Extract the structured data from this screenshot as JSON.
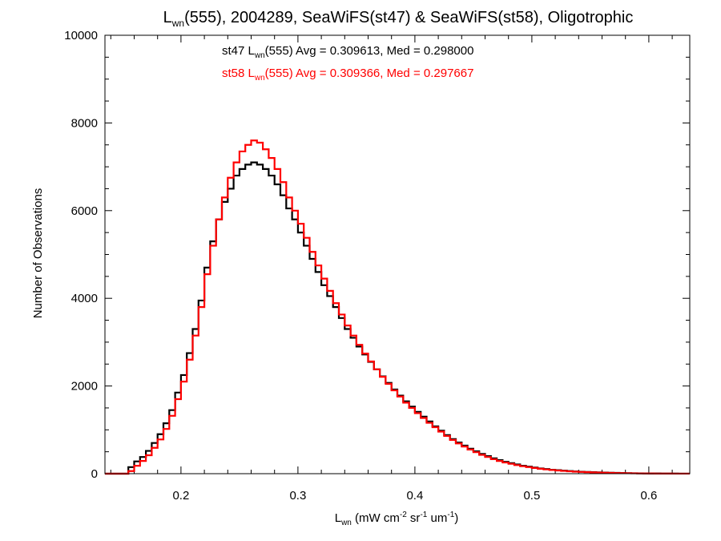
{
  "chart_data": {
    "type": "line",
    "title": {
      "prefix": "L",
      "sub": "wn",
      "rest": "(555), 2004289, SeaWiFS(st47) & SeaWiFS(st58), Oligotrophic"
    },
    "xlabel": {
      "prefix": "L",
      "sub": "wn",
      "p1": " (mW cm",
      "sup1": "-2",
      "p2": " sr",
      "sup2": "-1",
      "p3": " um",
      "sup3": "-1",
      "p4": ")"
    },
    "ylabel": "Number of Observations",
    "xlim": [
      0.135,
      0.635
    ],
    "ylim": [
      0,
      10000
    ],
    "x_ticks": [
      0.2,
      0.3,
      0.4,
      0.5,
      0.6
    ],
    "x_tick_labels": [
      "0.2",
      "0.3",
      "0.4",
      "0.5",
      "0.6"
    ],
    "y_ticks": [
      0,
      2000,
      4000,
      6000,
      8000,
      10000
    ],
    "y_tick_labels": [
      "0",
      "2000",
      "4000",
      "6000",
      "8000",
      "10000"
    ],
    "annotations": [
      {
        "series": "st47",
        "color": "#000000",
        "prefix": "st47 L",
        "sub": "wn",
        "rest": "(555) Avg = 0.309613, Med = 0.298000"
      },
      {
        "series": "st58",
        "color": "#ff0000",
        "prefix": "st58 L",
        "sub": "wn",
        "rest": "(555) Avg = 0.309366, Med = 0.297667"
      }
    ],
    "series": [
      {
        "name": "st47",
        "color": "#000000",
        "x": [
          0.135,
          0.14,
          0.145,
          0.15,
          0.155,
          0.16,
          0.165,
          0.17,
          0.175,
          0.18,
          0.185,
          0.19,
          0.195,
          0.2,
          0.205,
          0.21,
          0.215,
          0.22,
          0.225,
          0.23,
          0.235,
          0.24,
          0.245,
          0.25,
          0.255,
          0.26,
          0.265,
          0.27,
          0.275,
          0.28,
          0.285,
          0.29,
          0.295,
          0.3,
          0.305,
          0.31,
          0.315,
          0.32,
          0.325,
          0.33,
          0.335,
          0.34,
          0.345,
          0.35,
          0.355,
          0.36,
          0.365,
          0.37,
          0.375,
          0.38,
          0.385,
          0.39,
          0.395,
          0.4,
          0.405,
          0.41,
          0.415,
          0.42,
          0.425,
          0.43,
          0.435,
          0.44,
          0.445,
          0.45,
          0.455,
          0.46,
          0.465,
          0.47,
          0.475,
          0.48,
          0.485,
          0.49,
          0.495,
          0.5,
          0.505,
          0.51,
          0.515,
          0.52,
          0.525,
          0.53,
          0.535,
          0.54,
          0.545,
          0.55,
          0.555,
          0.56,
          0.565,
          0.57,
          0.575,
          0.58,
          0.585,
          0.59,
          0.595,
          0.6,
          0.605,
          0.61,
          0.615,
          0.62,
          0.625,
          0.63
        ],
        "y": [
          0,
          0,
          0,
          0,
          150,
          280,
          380,
          520,
          700,
          900,
          1150,
          1450,
          1850,
          2250,
          2750,
          3300,
          3950,
          4700,
          5300,
          5800,
          6200,
          6500,
          6800,
          6950,
          7050,
          7100,
          7050,
          6950,
          6800,
          6600,
          6350,
          6050,
          5800,
          5500,
          5200,
          4900,
          4600,
          4300,
          4050,
          3800,
          3550,
          3300,
          3100,
          2900,
          2720,
          2550,
          2380,
          2220,
          2070,
          1920,
          1780,
          1650,
          1530,
          1410,
          1300,
          1190,
          1080,
          980,
          880,
          790,
          710,
          640,
          570,
          510,
          450,
          400,
          350,
          310,
          270,
          240,
          210,
          180,
          160,
          140,
          120,
          105,
          90,
          80,
          70,
          60,
          50,
          45,
          40,
          35,
          30,
          25,
          20,
          18,
          15,
          12,
          10,
          8,
          6,
          5,
          4,
          3,
          2,
          2,
          1,
          1
        ]
      },
      {
        "name": "st58",
        "color": "#ff0000",
        "x": [
          0.135,
          0.14,
          0.145,
          0.15,
          0.155,
          0.16,
          0.165,
          0.17,
          0.175,
          0.18,
          0.185,
          0.19,
          0.195,
          0.2,
          0.205,
          0.21,
          0.215,
          0.22,
          0.225,
          0.23,
          0.235,
          0.24,
          0.245,
          0.25,
          0.255,
          0.26,
          0.265,
          0.27,
          0.275,
          0.28,
          0.285,
          0.29,
          0.295,
          0.3,
          0.305,
          0.31,
          0.315,
          0.32,
          0.325,
          0.33,
          0.335,
          0.34,
          0.345,
          0.35,
          0.355,
          0.36,
          0.365,
          0.37,
          0.375,
          0.38,
          0.385,
          0.39,
          0.395,
          0.4,
          0.405,
          0.41,
          0.415,
          0.42,
          0.425,
          0.43,
          0.435,
          0.44,
          0.445,
          0.45,
          0.455,
          0.46,
          0.465,
          0.47,
          0.475,
          0.48,
          0.485,
          0.49,
          0.495,
          0.5,
          0.505,
          0.51,
          0.515,
          0.52,
          0.525,
          0.53,
          0.535,
          0.54,
          0.545,
          0.55,
          0.555,
          0.56,
          0.565,
          0.57,
          0.575,
          0.58,
          0.585,
          0.59,
          0.595,
          0.6,
          0.605,
          0.61,
          0.615,
          0.62,
          0.625,
          0.63
        ],
        "y": [
          0,
          0,
          0,
          0,
          60,
          180,
          290,
          420,
          590,
          780,
          1020,
          1320,
          1700,
          2100,
          2600,
          3150,
          3800,
          4550,
          5200,
          5800,
          6300,
          6750,
          7100,
          7350,
          7500,
          7600,
          7550,
          7400,
          7200,
          6950,
          6650,
          6300,
          6000,
          5700,
          5380,
          5060,
          4750,
          4450,
          4170,
          3890,
          3630,
          3380,
          3150,
          2940,
          2740,
          2560,
          2380,
          2210,
          2050,
          1900,
          1760,
          1620,
          1500,
          1380,
          1270,
          1160,
          1060,
          960,
          860,
          770,
          690,
          620,
          550,
          490,
          430,
          380,
          330,
          290,
          255,
          225,
          195,
          170,
          150,
          130,
          112,
          97,
          84,
          73,
          63,
          54,
          46,
          40,
          35,
          30,
          26,
          22,
          18,
          15,
          12,
          10,
          8,
          6,
          5,
          4,
          3,
          2,
          2,
          1,
          1,
          1
        ]
      }
    ]
  }
}
